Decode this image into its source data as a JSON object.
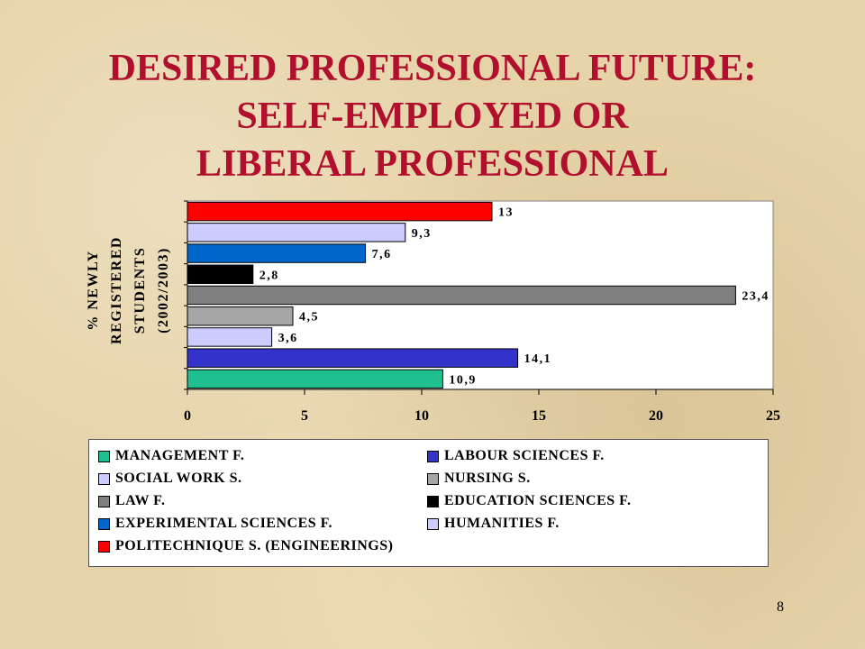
{
  "slide": {
    "title_lines": [
      "DESIRED PROFESSIONAL FUTURE:",
      "SELF-EMPLOYED OR",
      "LIBERAL PROFESSIONAL"
    ],
    "page_number": "8"
  },
  "chart_data": {
    "type": "bar",
    "orientation": "horizontal",
    "title": "",
    "ylabel_lines": [
      "% NEWLY",
      "REGISTERED",
      "STUDENTS",
      "(2002/2003)"
    ],
    "xlabel": "",
    "xlim": [
      0,
      25
    ],
    "xticks": [
      "0",
      "5",
      "10",
      "15",
      "20",
      "25"
    ],
    "grid": false,
    "legend_position": "bottom",
    "series": [
      {
        "name": "MANAGEMENT F.",
        "value": 10.9,
        "label": "10,9",
        "color": "#1fbf8f"
      },
      {
        "name": "LABOUR SCIENCES F.",
        "value": 14.1,
        "label": "14,1",
        "color": "#3333cc"
      },
      {
        "name": "SOCIAL WORK S.",
        "value": 3.6,
        "label": "3,6",
        "color": "#ccccff"
      },
      {
        "name": "NURSING S.",
        "value": 4.5,
        "label": "4,5",
        "color": "#a6a6a6"
      },
      {
        "name": "LAW F.",
        "value": 23.4,
        "label": "23,4",
        "color": "#808080"
      },
      {
        "name": "EDUCATION SCIENCES F.",
        "value": 2.8,
        "label": "2,8",
        "color": "#000000"
      },
      {
        "name": "EXPERIMENTAL SCIENCES F.",
        "value": 7.6,
        "label": "7,6",
        "color": "#0066cc"
      },
      {
        "name": "HUMANITIES F.",
        "value": 9.3,
        "label": "9,3",
        "color": "#ccccff"
      },
      {
        "name": "POLITECHNIQUE S. (ENGINEERINGS)",
        "value": 13,
        "label": "13",
        "color": "#ff0000"
      }
    ]
  }
}
